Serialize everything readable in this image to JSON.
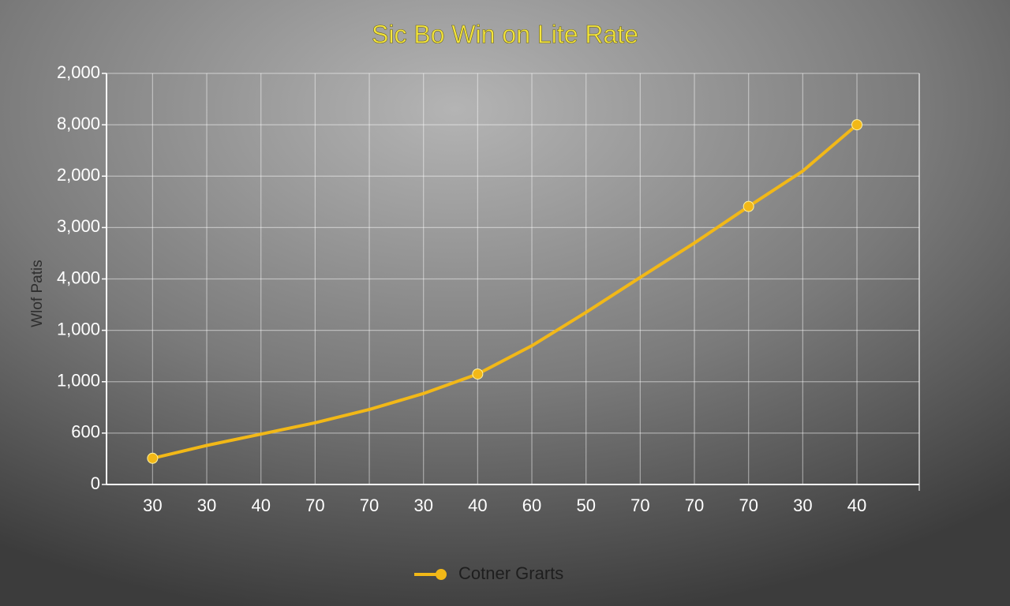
{
  "chart_data": {
    "type": "line",
    "title": "Sic Bo Win on Lite Rate",
    "y_label": "Wlof Patis",
    "categories": [
      "30",
      "30",
      "40",
      "70",
      "70",
      "30",
      "40",
      "60",
      "50",
      "70",
      "70",
      "70",
      "30",
      "40"
    ],
    "series": [
      {
        "name": "Cotner Grarts",
        "color": "#f2b817",
        "values": [
          0.51,
          0.76,
          0.98,
          1.2,
          1.46,
          1.77,
          2.15,
          2.7,
          3.35,
          4.03,
          4.7,
          5.41,
          6.1,
          7.0
        ],
        "markers": [
          0,
          6,
          11,
          13
        ]
      }
    ],
    "ylim": [
      0,
      8
    ],
    "yticks": [
      {
        "value": 0,
        "label": "0"
      },
      {
        "value": 1,
        "label": "600"
      },
      {
        "value": 2,
        "label": "1,000"
      },
      {
        "value": 3,
        "label": "1,000"
      },
      {
        "value": 4,
        "label": "4,000"
      },
      {
        "value": 5,
        "label": "3,000"
      },
      {
        "value": 6,
        "label": "2,000"
      },
      {
        "value": 7,
        "label": "8,000"
      },
      {
        "value": 8,
        "label": "2,000"
      }
    ],
    "grid": true
  }
}
